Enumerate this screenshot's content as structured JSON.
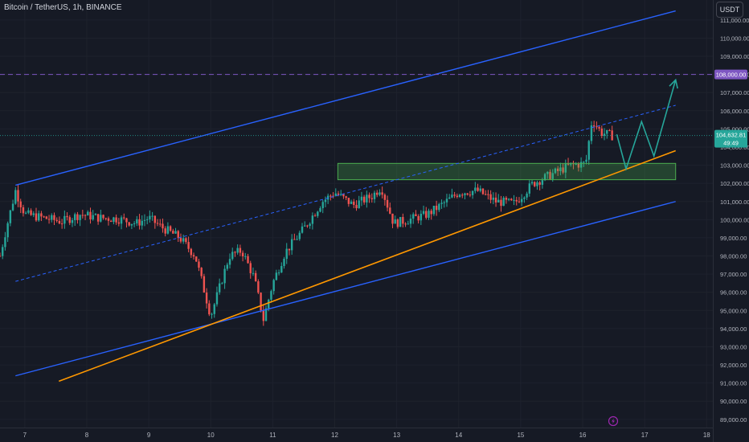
{
  "symbol": {
    "title": "Bitcoin / TetherUS, 1h, BINANCE"
  },
  "axis": {
    "currency": "USDT"
  },
  "price_badges": {
    "target": "108,000.00",
    "last_price": "104,632.81",
    "countdown": "49:49"
  },
  "colors": {
    "background": "#161a25",
    "grid": "#1e222d",
    "up": "#26a69a",
    "down": "#ef5350",
    "channel": "#2962ff",
    "trendline": "#ff9800",
    "target_line": "#7e57c2",
    "projection": "#26a69a",
    "zone": "#1b5e20"
  },
  "icons": {
    "bottom": "lightning-icon"
  },
  "chart_data": {
    "type": "candlestick",
    "title": "Bitcoin / TetherUS, 1h, BINANCE",
    "x_tick_labels": [
      "7",
      "8",
      "9",
      "10",
      "11",
      "12",
      "13",
      "14",
      "15",
      "16",
      "17",
      "18"
    ],
    "x_ticks_days": [
      7,
      8,
      9,
      10,
      11,
      12,
      13,
      14,
      15,
      16,
      17,
      18
    ],
    "y_tick_values": [
      89000,
      90000,
      91000,
      92000,
      93000,
      94000,
      95000,
      96000,
      97000,
      98000,
      99000,
      100000,
      101000,
      102000,
      103000,
      104000,
      105000,
      106000,
      107000,
      108000,
      109000,
      110000,
      111000
    ],
    "y_tick_labels": [
      "89,000.00",
      "90,000.00",
      "91,000.00",
      "92,000.00",
      "93,000.00",
      "94,000.00",
      "95,000.00",
      "96,000.00",
      "97,000.00",
      "98,000.00",
      "99,000.00",
      "100,000.00",
      "101,000.00",
      "102,000.00",
      "103,000.00",
      "104,000.00",
      "105,000.00",
      "106,000.00",
      "107,000.00",
      "108,000.00",
      "109,000.00",
      "110,000.00",
      "111,000.00"
    ],
    "x_range_days": [
      6.6,
      18.1
    ],
    "y_range": [
      88550,
      112100
    ],
    "grid": true,
    "close_path": [
      [
        6.6,
        98000
      ],
      [
        6.7,
        99500
      ],
      [
        6.85,
        101600
      ],
      [
        7.0,
        100300
      ],
      [
        7.3,
        100100
      ],
      [
        7.6,
        99900
      ],
      [
        7.9,
        100300
      ],
      [
        8.2,
        100100
      ],
      [
        8.5,
        100050
      ],
      [
        8.8,
        99800
      ],
      [
        9.0,
        100100
      ],
      [
        9.2,
        99600
      ],
      [
        9.5,
        99000
      ],
      [
        9.75,
        98000
      ],
      [
        10.0,
        94700
      ],
      [
        10.3,
        98000
      ],
      [
        10.5,
        98300
      ],
      [
        10.7,
        96800
      ],
      [
        10.85,
        94500
      ],
      [
        11.0,
        96500
      ],
      [
        11.2,
        98200
      ],
      [
        11.5,
        99500
      ],
      [
        11.8,
        101000
      ],
      [
        12.0,
        101500
      ],
      [
        12.3,
        100800
      ],
      [
        12.6,
        101300
      ],
      [
        12.75,
        101800
      ],
      [
        12.95,
        99800
      ],
      [
        13.2,
        100000
      ],
      [
        13.5,
        100300
      ],
      [
        13.8,
        101000
      ],
      [
        14.0,
        101500
      ],
      [
        14.3,
        101600
      ],
      [
        14.6,
        101000
      ],
      [
        14.9,
        100900
      ],
      [
        15.2,
        102000
      ],
      [
        15.5,
        102500
      ],
      [
        15.8,
        103000
      ],
      [
        16.05,
        103100
      ],
      [
        16.15,
        105500
      ],
      [
        16.3,
        104800
      ],
      [
        16.5,
        104600
      ]
    ],
    "channel_upper": [
      [
        6.85,
        101900
      ],
      [
        17.5,
        111500
      ]
    ],
    "channel_lower": [
      [
        6.85,
        91400
      ],
      [
        17.5,
        101000
      ]
    ],
    "channel_mid": [
      [
        6.85,
        96600
      ],
      [
        17.5,
        106300
      ]
    ],
    "trendline": [
      [
        7.55,
        91100
      ],
      [
        17.5,
        103800
      ]
    ],
    "horizontal_line_price": 108000,
    "last_price": 104632.81,
    "zone": {
      "x": [
        12.05,
        17.5
      ],
      "y": [
        102200,
        103100
      ]
    },
    "projection_path": [
      [
        16.55,
        104700
      ],
      [
        16.7,
        102800
      ],
      [
        16.95,
        105400
      ],
      [
        17.15,
        103500
      ],
      [
        17.5,
        107700
      ]
    ]
  }
}
